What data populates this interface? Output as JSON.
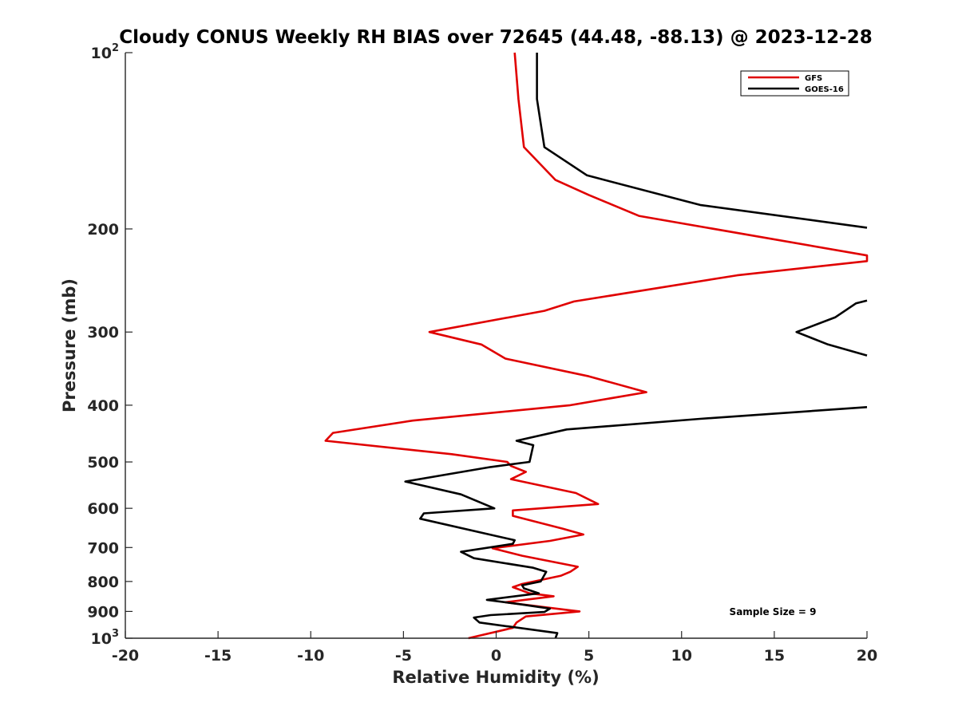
{
  "chart_data": {
    "type": "line",
    "title": "Cloudy CONUS Weekly RH BIAS over 72645 (44.48, -88.13) @ 2023-12-28",
    "xlabel": "Relative Humidity (%)",
    "ylabel": "Pressure (mb)",
    "xlim": [
      -20,
      20
    ],
    "ylim": [
      100,
      1000
    ],
    "yscale": "log",
    "y_reversed": true,
    "grid": false,
    "legend_position": "top-right",
    "x_ticks": [
      "-20",
      "-15",
      "-10",
      "-5",
      "0",
      "5",
      "10",
      "15",
      "20"
    ],
    "y_ticks": [
      {
        "value": 100,
        "base": "10",
        "exp": "2"
      },
      {
        "value": 200,
        "label": "200"
      },
      {
        "value": 300,
        "label": "300"
      },
      {
        "value": 400,
        "label": "400"
      },
      {
        "value": 500,
        "label": "500"
      },
      {
        "value": 600,
        "label": "600"
      },
      {
        "value": 700,
        "label": "700"
      },
      {
        "value": 800,
        "label": "800"
      },
      {
        "value": 900,
        "label": "900"
      },
      {
        "value": 1000,
        "base": "10",
        "exp": "3"
      }
    ],
    "series": [
      {
        "name": "GFS",
        "color": "#e00000",
        "points": [
          [
            1.0,
            100
          ],
          [
            1.2,
            120
          ],
          [
            1.5,
            145
          ],
          [
            3.2,
            165
          ],
          [
            5.0,
            175
          ],
          [
            7.7,
            190
          ],
          [
            20.0,
            222
          ],
          [
            20.0,
            227
          ],
          [
            13.0,
            240
          ],
          [
            4.2,
            266
          ],
          [
            2.6,
            276
          ],
          [
            -3.6,
            300
          ],
          [
            -0.8,
            315
          ],
          [
            0.5,
            333
          ],
          [
            5.0,
            357
          ],
          [
            8.1,
            380
          ],
          [
            4.0,
            400
          ],
          [
            -4.5,
            425
          ],
          [
            -8.8,
            446
          ],
          [
            -9.2,
            460
          ],
          [
            -2.4,
            485
          ],
          [
            0.6,
            500
          ],
          [
            0.8,
            508
          ],
          [
            1.6,
            520
          ],
          [
            0.8,
            535
          ],
          [
            4.3,
            565
          ],
          [
            5.5,
            590
          ],
          [
            0.9,
            605
          ],
          [
            0.9,
            618
          ],
          [
            3.6,
            650
          ],
          [
            4.7,
            665
          ],
          [
            2.9,
            682
          ],
          [
            -0.2,
            702
          ],
          [
            1.4,
            723
          ],
          [
            4.4,
            755
          ],
          [
            4.0,
            770
          ],
          [
            3.5,
            782
          ],
          [
            1.4,
            808
          ],
          [
            0.9,
            818
          ],
          [
            1.8,
            838
          ],
          [
            3.1,
            848
          ],
          [
            0.5,
            868
          ],
          [
            2.6,
            885
          ],
          [
            4.5,
            900
          ],
          [
            1.6,
            918
          ],
          [
            1.1,
            940
          ],
          [
            0.9,
            960
          ],
          [
            -1.5,
            1000
          ]
        ]
      },
      {
        "name": "GOES-16",
        "color": "#000000",
        "points": [
          [
            2.2,
            100
          ],
          [
            2.2,
            120
          ],
          [
            2.6,
            145
          ],
          [
            4.9,
            162
          ],
          [
            11.0,
            182
          ],
          [
            20.0,
            199
          ],
          [
            null,
            null
          ],
          [
            20.0,
            265
          ],
          [
            19.4,
            268
          ],
          [
            18.3,
            283
          ],
          [
            16.2,
            300
          ],
          [
            17.9,
            315
          ],
          [
            20.0,
            329
          ],
          [
            null,
            null
          ],
          [
            20.0,
            403
          ],
          [
            11.0,
            422
          ],
          [
            3.8,
            440
          ],
          [
            1.1,
            460
          ],
          [
            2.0,
            468
          ],
          [
            1.8,
            500
          ],
          [
            -0.3,
            510
          ],
          [
            -4.9,
            540
          ],
          [
            -1.9,
            568
          ],
          [
            -0.1,
            600
          ],
          [
            -3.9,
            612
          ],
          [
            -4.1,
            625
          ],
          [
            -0.1,
            668
          ],
          [
            1.0,
            680
          ],
          [
            0.9,
            690
          ],
          [
            -1.9,
            712
          ],
          [
            -1.2,
            730
          ],
          [
            2.0,
            758
          ],
          [
            2.7,
            770
          ],
          [
            2.5,
            790
          ],
          [
            2.4,
            800
          ],
          [
            1.4,
            812
          ],
          [
            1.5,
            822
          ],
          [
            2.3,
            838
          ],
          [
            -0.5,
            860
          ],
          [
            1.3,
            875
          ],
          [
            2.9,
            890
          ],
          [
            2.6,
            902
          ],
          [
            -0.3,
            913
          ],
          [
            -1.2,
            922
          ],
          [
            -0.9,
            940
          ],
          [
            3.3,
            980
          ],
          [
            3.2,
            1000
          ]
        ]
      }
    ]
  },
  "annotation": "Sample Size = 9"
}
